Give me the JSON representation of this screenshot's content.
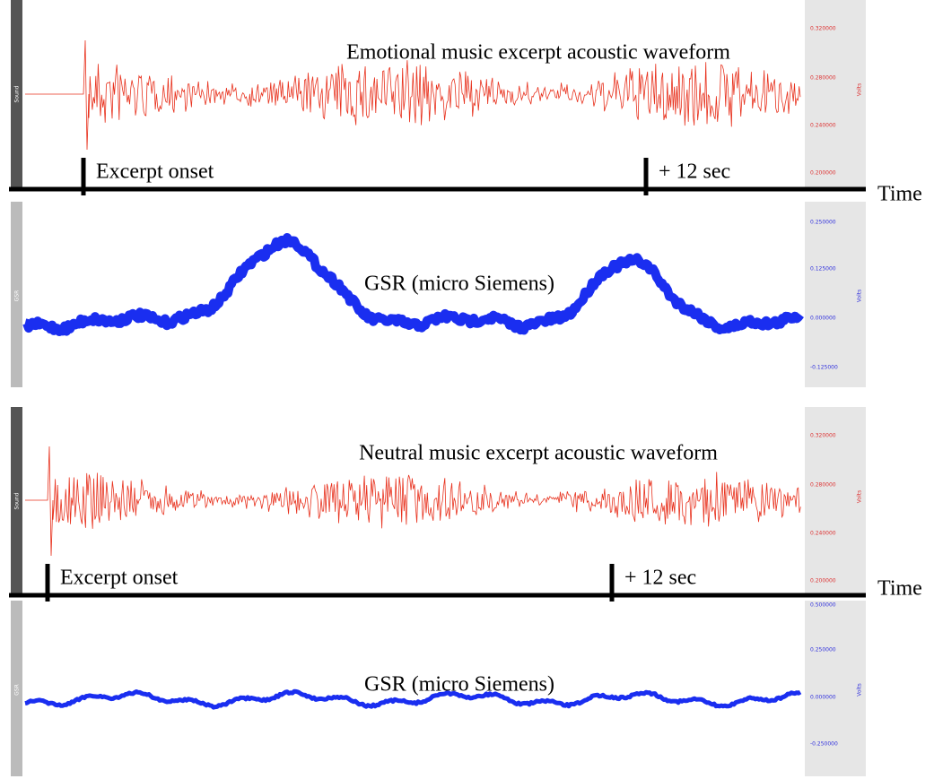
{
  "panels": [
    {
      "sound": {
        "title": "Emotional music excerpt acoustic waveform",
        "track_label": "Sound",
        "unit": "Volts",
        "ticks": [
          "0.320000",
          "0.280000",
          "0.240000",
          "0.200000"
        ]
      },
      "markers": [
        "Excerpt onset",
        "+ 12 sec"
      ],
      "axis_label": "Time",
      "gsr": {
        "title": "GSR (micro Siemens)",
        "track_label": "GSR",
        "unit": "Volts",
        "ticks": [
          "0.250000",
          "0.125000",
          "0.000000",
          "-0.125000"
        ]
      }
    },
    {
      "sound": {
        "title": "Neutral music excerpt acoustic waveform",
        "track_label": "Sound",
        "unit": "Volts",
        "ticks": [
          "0.320000",
          "0.280000",
          "0.240000",
          "0.200000"
        ]
      },
      "markers": [
        "Excerpt onset",
        "+ 12 sec"
      ],
      "axis_label": "Time",
      "gsr": {
        "title": "GSR (micro Siemens)",
        "track_label": "GSR",
        "unit": "Volts",
        "ticks": [
          "0.500000",
          "0.250000",
          "0.000000",
          "-0.250000"
        ]
      }
    }
  ]
}
